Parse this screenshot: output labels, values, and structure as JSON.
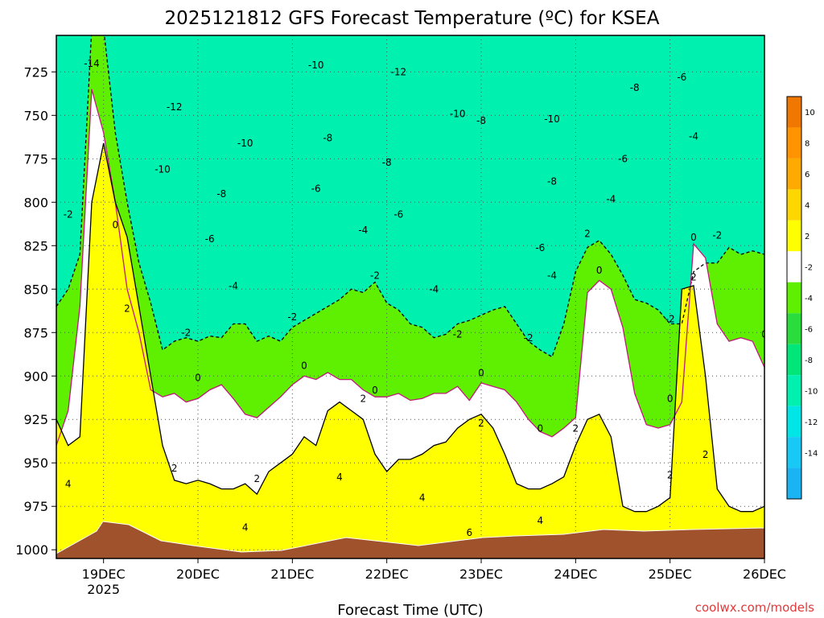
{
  "chart_data": {
    "type": "heatmap",
    "title": "2025121812 GFS Forecast Temperature (ºC) for KSEA",
    "xlabel": "Forecast Time (UTC)",
    "credit": "coolwx.com/models",
    "y_axis": {
      "reversed": true,
      "range": [
        1005,
        704
      ],
      "ticks": [
        725,
        750,
        775,
        800,
        825,
        850,
        875,
        900,
        925,
        950,
        975,
        1000
      ],
      "grid": true
    },
    "x_axis": {
      "range": [
        "2025-12-18T12",
        "2025-12-26T00"
      ],
      "ticks": [
        {
          "t": "2025-12-19T00",
          "label": "19DEC",
          "sub": "2025"
        },
        {
          "t": "2025-12-20T00",
          "label": "20DEC"
        },
        {
          "t": "2025-12-21T00",
          "label": "21DEC"
        },
        {
          "t": "2025-12-22T00",
          "label": "22DEC"
        },
        {
          "t": "2025-12-23T00",
          "label": "23DEC"
        },
        {
          "t": "2025-12-24T00",
          "label": "24DEC"
        },
        {
          "t": "2025-12-25T00",
          "label": "25DEC"
        },
        {
          "t": "2025-12-26T00",
          "label": "26DEC"
        }
      ],
      "grid": true
    },
    "colorbar": {
      "levels": [
        {
          "lo": -16,
          "hi": -14,
          "color": "#1ab4f5"
        },
        {
          "lo": -14,
          "hi": -12,
          "color": "#18c8f5"
        },
        {
          "lo": -12,
          "hi": -10,
          "color": "#00e6e6"
        },
        {
          "lo": -10,
          "hi": -8,
          "color": "#00f0b0"
        },
        {
          "lo": -8,
          "hi": -6,
          "color": "#00e678"
        },
        {
          "lo": -6,
          "hi": -4,
          "color": "#2adc3c"
        },
        {
          "lo": -4,
          "hi": -2,
          "color": "#5ef000"
        },
        {
          "lo": -2,
          "hi": 2,
          "color": "#ffffff"
        },
        {
          "lo": 2,
          "hi": 4,
          "color": "#ffff00"
        },
        {
          "lo": 4,
          "hi": 6,
          "color": "#ffd700"
        },
        {
          "lo": 6,
          "hi": 8,
          "color": "#ffaa00"
        },
        {
          "lo": 8,
          "hi": 10,
          "color": "#ff9300"
        },
        {
          "lo": 10,
          "hi": 12,
          "color": "#f07800"
        }
      ],
      "tick_labels": [
        "-14",
        "-12",
        "-10",
        "-8",
        "-6",
        "-4",
        "-2",
        "2",
        "4",
        "6",
        "8",
        "10"
      ],
      "tick_values": [
        -14,
        -12,
        -10,
        -8,
        -6,
        -4,
        -2,
        2,
        4,
        6,
        8,
        10
      ]
    },
    "terrain_color": "#a0522d",
    "frozen_line_color": "#c0187c",
    "contour_labels": [
      {
        "text": "-14",
        "t": "2025-12-18T21",
        "p": 722
      },
      {
        "text": "-12",
        "t": "2025-12-19T18",
        "p": 747
      },
      {
        "text": "-10",
        "t": "2025-12-21T06",
        "p": 723
      },
      {
        "text": "-12",
        "t": "2025-12-22T03",
        "p": 727
      },
      {
        "text": "-10",
        "t": "2025-12-22T18",
        "p": 751
      },
      {
        "text": "-8",
        "t": "2025-12-23T00",
        "p": 755
      },
      {
        "text": "-10",
        "t": "2025-12-23T18",
        "p": 754
      },
      {
        "text": "-8",
        "t": "2025-12-24T15",
        "p": 736
      },
      {
        "text": "-6",
        "t": "2025-12-25T03",
        "p": 730
      },
      {
        "text": "-10",
        "t": "2025-12-20T12",
        "p": 768
      },
      {
        "text": "-8",
        "t": "2025-12-21T09",
        "p": 765
      },
      {
        "text": "-8",
        "t": "2025-12-22T00",
        "p": 779
      },
      {
        "text": "-6",
        "t": "2025-12-24T12",
        "p": 777
      },
      {
        "text": "-4",
        "t": "2025-12-25T06",
        "p": 764
      },
      {
        "text": "-10",
        "t": "2025-12-19T15",
        "p": 783
      },
      {
        "text": "-8",
        "t": "2025-12-20T06",
        "p": 797
      },
      {
        "text": "-6",
        "t": "2025-12-21T06",
        "p": 794
      },
      {
        "text": "-6",
        "t": "2025-12-22T03",
        "p": 809
      },
      {
        "text": "-8",
        "t": "2025-12-23T18",
        "p": 790
      },
      {
        "text": "-4",
        "t": "2025-12-24T09",
        "p": 800
      },
      {
        "text": "-2",
        "t": "2025-12-18T15",
        "p": 809
      },
      {
        "text": "0",
        "t": "2025-12-19T03",
        "p": 815
      },
      {
        "text": "-6",
        "t": "2025-12-20T03",
        "p": 823
      },
      {
        "text": "-4",
        "t": "2025-12-21T18",
        "p": 818
      },
      {
        "text": "-6",
        "t": "2025-12-23T15",
        "p": 828
      },
      {
        "text": "2",
        "t": "2025-12-24T03",
        "p": 820
      },
      {
        "text": "0",
        "t": "2025-12-25T06",
        "p": 822
      },
      {
        "text": "-2",
        "t": "2025-12-25T12",
        "p": 821
      },
      {
        "text": "-4",
        "t": "2025-12-20T09",
        "p": 850
      },
      {
        "text": "-2",
        "t": "2025-12-21T21",
        "p": 844
      },
      {
        "text": "-4",
        "t": "2025-12-22T12",
        "p": 852
      },
      {
        "text": "-4",
        "t": "2025-12-23T18",
        "p": 844
      },
      {
        "text": "0",
        "t": "2025-12-24T06",
        "p": 841
      },
      {
        "text": "2",
        "t": "2025-12-25T06",
        "p": 845
      },
      {
        "text": "2",
        "t": "2025-12-19T06",
        "p": 863
      },
      {
        "text": "-2",
        "t": "2025-12-19T21",
        "p": 877
      },
      {
        "text": "-2",
        "t": "2025-12-21T00",
        "p": 868
      },
      {
        "text": "-2",
        "t": "2025-12-22T18",
        "p": 878
      },
      {
        "text": "-2",
        "t": "2025-12-23T12",
        "p": 880
      },
      {
        "text": "-2",
        "t": "2025-12-25T00",
        "p": 869
      },
      {
        "text": "0",
        "t": "2025-12-26T00",
        "p": 878
      },
      {
        "text": "0",
        "t": "2025-12-20T00",
        "p": 903
      },
      {
        "text": "0",
        "t": "2025-12-21T03",
        "p": 896
      },
      {
        "text": "0",
        "t": "2025-12-21T21",
        "p": 910
      },
      {
        "text": "0",
        "t": "2025-12-23T00",
        "p": 900
      },
      {
        "text": "0",
        "t": "2025-12-23T15",
        "p": 932
      },
      {
        "text": "2",
        "t": "2025-12-24T00",
        "p": 932
      },
      {
        "text": "0",
        "t": "2025-12-25T00",
        "p": 915
      },
      {
        "text": "2",
        "t": "2025-12-21T18",
        "p": 915
      },
      {
        "text": "2",
        "t": "2025-12-23T00",
        "p": 929
      },
      {
        "text": "2",
        "t": "2025-12-25T09",
        "p": 947
      },
      {
        "text": "2",
        "t": "2025-12-19T18",
        "p": 955
      },
      {
        "text": "2",
        "t": "2025-12-20T15",
        "p": 961
      },
      {
        "text": "4",
        "t": "2025-12-18T15",
        "p": 964
      },
      {
        "text": "4",
        "t": "2025-12-21T12",
        "p": 960
      },
      {
        "text": "4",
        "t": "2025-12-22T09",
        "p": 972
      },
      {
        "text": "2",
        "t": "2025-12-25T00",
        "p": 959
      },
      {
        "text": "4",
        "t": "2025-12-20T12",
        "p": 989
      },
      {
        "text": "4",
        "t": "2025-12-23T15",
        "p": 985
      },
      {
        "text": "6",
        "t": "2025-12-22T21",
        "p": 992
      }
    ],
    "series": [
      {
        "name": "-2 isotherm (pressure, hPa)",
        "x": [
          "2025-12-18T12",
          "2025-12-18T15",
          "2025-12-18T18",
          "2025-12-18T21",
          "2025-12-19T00",
          "2025-12-19T03",
          "2025-12-19T06",
          "2025-12-19T09",
          "2025-12-19T12",
          "2025-12-19T15",
          "2025-12-19T18",
          "2025-12-19T21",
          "2025-12-20T00",
          "2025-12-20T03",
          "2025-12-20T06",
          "2025-12-20T09",
          "2025-12-20T12",
          "2025-12-20T15",
          "2025-12-20T18",
          "2025-12-20T21",
          "2025-12-21T00",
          "2025-12-21T03",
          "2025-12-21T06",
          "2025-12-21T09",
          "2025-12-21T12",
          "2025-12-21T15",
          "2025-12-21T18",
          "2025-12-21T21",
          "2025-12-22T00",
          "2025-12-22T03",
          "2025-12-22T06",
          "2025-12-22T09",
          "2025-12-22T12",
          "2025-12-22T15",
          "2025-12-22T18",
          "2025-12-22T21",
          "2025-12-23T00",
          "2025-12-23T03",
          "2025-12-23T06",
          "2025-12-23T09",
          "2025-12-23T12",
          "2025-12-23T15",
          "2025-12-23T18",
          "2025-12-23T21",
          "2025-12-24T00",
          "2025-12-24T03",
          "2025-12-24T06",
          "2025-12-24T09",
          "2025-12-24T12",
          "2025-12-24T15",
          "2025-12-24T18",
          "2025-12-24T21",
          "2025-12-25T00",
          "2025-12-25T03",
          "2025-12-25T06",
          "2025-12-25T09",
          "2025-12-25T12",
          "2025-12-25T15",
          "2025-12-25T18",
          "2025-12-25T21",
          "2025-12-26T00"
        ],
        "y": [
          860,
          850,
          830,
          700,
          700,
          760,
          800,
          835,
          858,
          885,
          880,
          878,
          880,
          877,
          878,
          870,
          870,
          880,
          877,
          880,
          872,
          868,
          864,
          860,
          856,
          850,
          852,
          846,
          858,
          862,
          870,
          872,
          878,
          876,
          870,
          868,
          865,
          862,
          860,
          870,
          880,
          885,
          889,
          870,
          840,
          826,
          822,
          830,
          842,
          856,
          858,
          862,
          870,
          870,
          840,
          835,
          835,
          826,
          830,
          828,
          830
        ]
      },
      {
        "name": "0 isotherm (pressure, hPa)",
        "x": [
          "2025-12-18T12",
          "2025-12-18T15",
          "2025-12-18T18",
          "2025-12-18T21",
          "2025-12-19T00",
          "2025-12-19T03",
          "2025-12-19T06",
          "2025-12-19T09",
          "2025-12-19T12",
          "2025-12-19T15",
          "2025-12-19T18",
          "2025-12-19T21",
          "2025-12-20T00",
          "2025-12-20T03",
          "2025-12-20T06",
          "2025-12-20T09",
          "2025-12-20T12",
          "2025-12-20T15",
          "2025-12-20T18",
          "2025-12-20T21",
          "2025-12-21T00",
          "2025-12-21T03",
          "2025-12-21T06",
          "2025-12-21T09",
          "2025-12-21T12",
          "2025-12-21T15",
          "2025-12-21T18",
          "2025-12-21T21",
          "2025-12-22T00",
          "2025-12-22T03",
          "2025-12-22T06",
          "2025-12-22T09",
          "2025-12-22T12",
          "2025-12-22T15",
          "2025-12-22T18",
          "2025-12-22T21",
          "2025-12-23T00",
          "2025-12-23T03",
          "2025-12-23T06",
          "2025-12-23T09",
          "2025-12-23T12",
          "2025-12-23T15",
          "2025-12-23T18",
          "2025-12-23T21",
          "2025-12-24T00",
          "2025-12-24T03",
          "2025-12-24T06",
          "2025-12-24T09",
          "2025-12-24T12",
          "2025-12-24T15",
          "2025-12-24T18",
          "2025-12-24T21",
          "2025-12-25T00",
          "2025-12-25T03",
          "2025-12-25T06",
          "2025-12-25T09",
          "2025-12-25T12",
          "2025-12-25T15",
          "2025-12-25T18",
          "2025-12-25T21",
          "2025-12-26T00"
        ],
        "y": [
          940,
          920,
          860,
          735,
          760,
          800,
          850,
          875,
          908,
          912,
          910,
          915,
          913,
          908,
          905,
          913,
          922,
          924,
          918,
          912,
          905,
          900,
          902,
          898,
          902,
          902,
          908,
          912,
          912,
          910,
          914,
          913,
          910,
          910,
          906,
          914,
          904,
          906,
          908,
          915,
          925,
          932,
          935,
          930,
          924,
          852,
          845,
          850,
          872,
          910,
          928,
          930,
          928,
          915,
          824,
          832,
          870,
          880,
          878,
          880,
          895
        ]
      },
      {
        "name": "2 isotherm (pressure, hPa)",
        "x": [
          "2025-12-18T12",
          "2025-12-18T15",
          "2025-12-18T18",
          "2025-12-18T21",
          "2025-12-19T00",
          "2025-12-19T03",
          "2025-12-19T06",
          "2025-12-19T09",
          "2025-12-19T12",
          "2025-12-19T15",
          "2025-12-19T18",
          "2025-12-19T21",
          "2025-12-20T00",
          "2025-12-20T03",
          "2025-12-20T06",
          "2025-12-20T09",
          "2025-12-20T12",
          "2025-12-20T15",
          "2025-12-20T18",
          "2025-12-20T21",
          "2025-12-21T00",
          "2025-12-21T03",
          "2025-12-21T06",
          "2025-12-21T09",
          "2025-12-21T12",
          "2025-12-21T15",
          "2025-12-21T18",
          "2025-12-21T21",
          "2025-12-22T00",
          "2025-12-22T03",
          "2025-12-22T06",
          "2025-12-22T09",
          "2025-12-22T12",
          "2025-12-22T15",
          "2025-12-22T18",
          "2025-12-22T21",
          "2025-12-23T00",
          "2025-12-23T03",
          "2025-12-23T06",
          "2025-12-23T09",
          "2025-12-23T12",
          "2025-12-23T15",
          "2025-12-23T18",
          "2025-12-23T21",
          "2025-12-24T00",
          "2025-12-24T03",
          "2025-12-24T06",
          "2025-12-24T09",
          "2025-12-24T12",
          "2025-12-24T15",
          "2025-12-24T18",
          "2025-12-24T21",
          "2025-12-25T00",
          "2025-12-25T03",
          "2025-12-25T06",
          "2025-12-25T09",
          "2025-12-25T12",
          "2025-12-25T15",
          "2025-12-25T18",
          "2025-12-25T21",
          "2025-12-26T00"
        ],
        "y": [
          925,
          940,
          935,
          800,
          766,
          800,
          820,
          860,
          900,
          940,
          960,
          962,
          960,
          962,
          965,
          965,
          962,
          968,
          955,
          950,
          945,
          935,
          940,
          920,
          915,
          920,
          925,
          945,
          955,
          948,
          948,
          945,
          940,
          938,
          930,
          925,
          922,
          930,
          945,
          962,
          965,
          965,
          962,
          958,
          940,
          925,
          922,
          935,
          975,
          978,
          978,
          975,
          970,
          850,
          848,
          900,
          965,
          975,
          978,
          978,
          975
        ]
      }
    ]
  }
}
